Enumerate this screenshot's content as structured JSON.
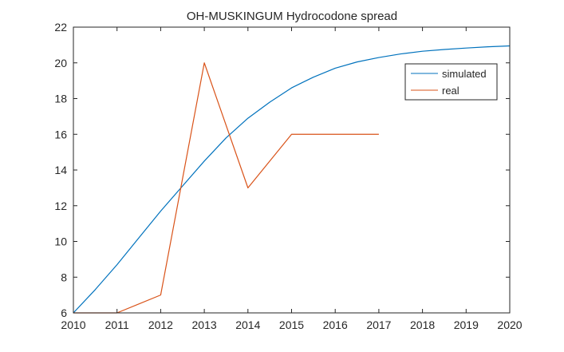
{
  "chart_data": {
    "type": "line",
    "title": "OH-MUSKINGUM Hydrocodone spread",
    "xlabel": "",
    "ylabel": "",
    "xlim": [
      2010,
      2020
    ],
    "ylim": [
      6,
      22
    ],
    "xticks": [
      2010,
      2011,
      2012,
      2013,
      2014,
      2015,
      2016,
      2017,
      2018,
      2019,
      2020
    ],
    "yticks": [
      6,
      8,
      10,
      12,
      14,
      16,
      18,
      20,
      22
    ],
    "grid": false,
    "legend_position": "top-right",
    "series": [
      {
        "name": "simulated",
        "color": "#0072BD",
        "x": [
          2010,
          2010.5,
          2011,
          2011.5,
          2012,
          2012.5,
          2013,
          2013.5,
          2014,
          2014.5,
          2015,
          2015.5,
          2016,
          2016.5,
          2017,
          2017.5,
          2018,
          2018.5,
          2019,
          2019.5,
          2020
        ],
        "y": [
          6.0,
          7.3,
          8.7,
          10.2,
          11.7,
          13.1,
          14.5,
          15.8,
          16.9,
          17.8,
          18.6,
          19.2,
          19.7,
          20.05,
          20.3,
          20.5,
          20.65,
          20.75,
          20.83,
          20.9,
          20.95
        ]
      },
      {
        "name": "real",
        "color": "#D95319",
        "x": [
          2010,
          2011,
          2012,
          2013,
          2014,
          2015,
          2016,
          2017
        ],
        "y": [
          6,
          6,
          7,
          20,
          13,
          16,
          16,
          16
        ]
      }
    ]
  }
}
